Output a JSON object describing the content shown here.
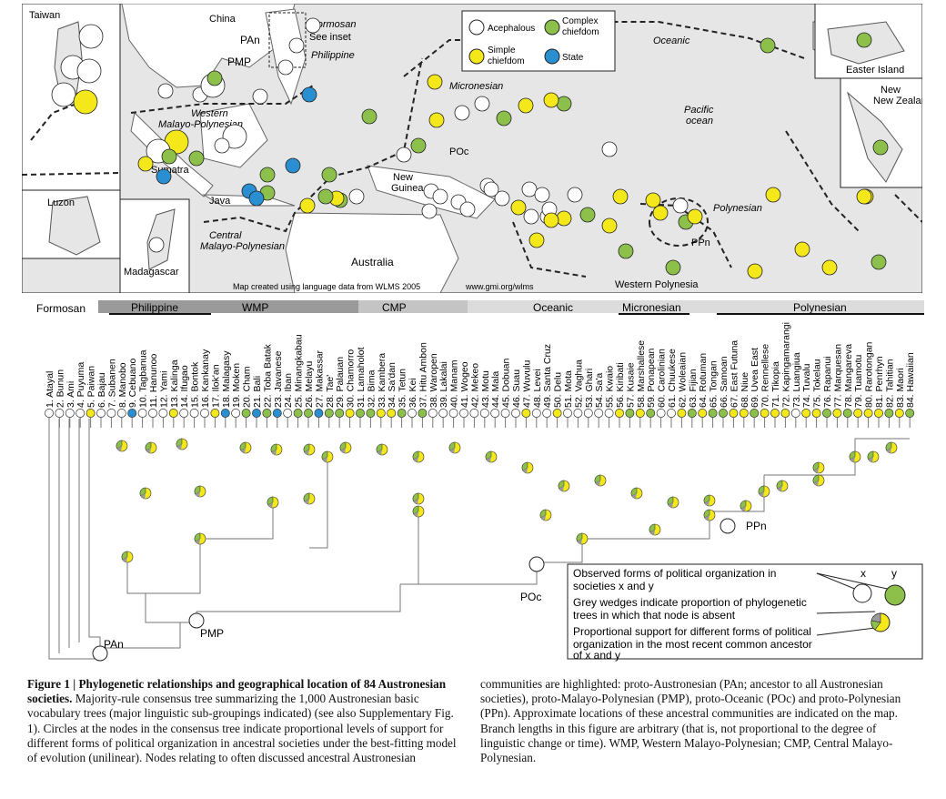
{
  "colors": {
    "acephalous": "#ffffff",
    "complex": "#8cc04b",
    "simple": "#f5e81a",
    "state": "#2a8fd0",
    "grey": "#9a9a9a",
    "land": "#ffffff",
    "sea": "#e6e6e6"
  },
  "map": {
    "legend": {
      "acephalous": "Acephalous",
      "complex": "Complex chiefdom",
      "simple": "Simple chiefdom",
      "state": "State"
    },
    "labels": {
      "taiwan": "Taiwan",
      "china": "China",
      "formosan": "Formosan",
      "see_inset": "See inset",
      "pan": "PAn",
      "pmp": "PMP",
      "philippine": "Philippine",
      "oceanic": "Oceanic",
      "micronesian": "Micronesian",
      "western_mp": "Western Malayo-Polynesian",
      "central_mp": "Central Malayo-Polynesian",
      "pacific": "Pacific ocean",
      "polynesian": "Polynesian",
      "sumatra": "Sumatra",
      "java": "Java",
      "luzon": "Luzon",
      "madagascar": "Madagascar",
      "australia": "Australia",
      "new_guinea": "New Guinea",
      "poc": "POc",
      "ppn": "PPn",
      "western_polynesia": "Western Polynesia",
      "easter": "Easter Island",
      "new_zealand": "New Zealand",
      "credit": "Map created using language data from WLMS 2005",
      "url": "www.gmi.org/wlms"
    }
  },
  "groups": {
    "formosan": "Formosan",
    "philippine": "Philippine",
    "wmp": "WMP",
    "cmp": "CMP",
    "oceanic": "Oceanic",
    "micronesian": "Micronesian",
    "polynesian": "Polynesian"
  },
  "societies": [
    {
      "name": "1. Atayal",
      "state": "a"
    },
    {
      "name": "2. Bunun",
      "state": "a"
    },
    {
      "name": "3. Ami",
      "state": "a"
    },
    {
      "name": "4. Puyuma",
      "state": "a"
    },
    {
      "name": "5. Paiwan",
      "state": "s"
    },
    {
      "name": "6. Bajau",
      "state": "a"
    },
    {
      "name": "7. Subanen",
      "state": "a"
    },
    {
      "name": "8. Manobo",
      "state": "a"
    },
    {
      "name": "9. Cebuano",
      "state": "t"
    },
    {
      "name": "10. Tagbanua",
      "state": "a"
    },
    {
      "name": "11. Hanunoo",
      "state": "a"
    },
    {
      "name": "12. Yami",
      "state": "a"
    },
    {
      "name": "13. Kalinga",
      "state": "s"
    },
    {
      "name": "14. Ifugao",
      "state": "a"
    },
    {
      "name": "15. Bontok",
      "state": "a"
    },
    {
      "name": "16. Kankanay",
      "state": "a"
    },
    {
      "name": "17. Ilok'an",
      "state": "s"
    },
    {
      "name": "18. Malagasy",
      "state": "t"
    },
    {
      "name": "19. Moken",
      "state": "a"
    },
    {
      "name": "20. Cham",
      "state": "c"
    },
    {
      "name": "21. Bali",
      "state": "t"
    },
    {
      "name": "22. Toba Batak",
      "state": "c"
    },
    {
      "name": "23. Javanese",
      "state": "t"
    },
    {
      "name": "24. Iban",
      "state": "a"
    },
    {
      "name": "25. Minangkabau",
      "state": "c"
    },
    {
      "name": "26. Melayu",
      "state": "c"
    },
    {
      "name": "27. Makassar",
      "state": "t"
    },
    {
      "name": "28. Tae'",
      "state": "c"
    },
    {
      "name": "29. Palauan",
      "state": "c"
    },
    {
      "name": "30. Chamorro",
      "state": "s"
    },
    {
      "name": "31. Lamaholot",
      "state": "c"
    },
    {
      "name": "32. Bima",
      "state": "c"
    },
    {
      "name": "33. Kambera",
      "state": "s"
    },
    {
      "name": "34. Sa'dan",
      "state": "s"
    },
    {
      "name": "35. Tetun",
      "state": "c"
    },
    {
      "name": "36. Kei",
      "state": "a"
    },
    {
      "name": "37. Hitu Ambon",
      "state": "c"
    },
    {
      "name": "38. Waropen",
      "state": "a"
    },
    {
      "name": "39. Lakalai",
      "state": "a"
    },
    {
      "name": "40. Manam",
      "state": "a"
    },
    {
      "name": "41. Wogeo",
      "state": "a"
    },
    {
      "name": "42. Mekeo",
      "state": "a"
    },
    {
      "name": "43. Motu",
      "state": "a"
    },
    {
      "name": "44. Mala",
      "state": "a"
    },
    {
      "name": "45. Dobuan",
      "state": "a"
    },
    {
      "name": "46. Suau",
      "state": "a"
    },
    {
      "name": "47. Wuvulu",
      "state": "s"
    },
    {
      "name": "48. Levei",
      "state": "a"
    },
    {
      "name": "49. Santa Cruz",
      "state": "a"
    },
    {
      "name": "50. Delu",
      "state": "s"
    },
    {
      "name": "51. Mota",
      "state": "a"
    },
    {
      "name": "52. Vaghua",
      "state": "a"
    },
    {
      "name": "53. Ghari",
      "state": "a"
    },
    {
      "name": "54. Sa'a",
      "state": "a"
    },
    {
      "name": "55. Kwaio",
      "state": "a"
    },
    {
      "name": "56. Kiribati",
      "state": "s"
    },
    {
      "name": "57. Kusaie",
      "state": "c"
    },
    {
      "name": "58. Marshallese",
      "state": "s"
    },
    {
      "name": "59. Ponapean",
      "state": "c"
    },
    {
      "name": "60. Carolinian",
      "state": "a"
    },
    {
      "name": "61. Chuukese",
      "state": "a"
    },
    {
      "name": "62. Woleaian",
      "state": "s"
    },
    {
      "name": "63. Fijian",
      "state": "c"
    },
    {
      "name": "64. Rotuman",
      "state": "s"
    },
    {
      "name": "65. Tongan",
      "state": "c"
    },
    {
      "name": "66. Samoan",
      "state": "c"
    },
    {
      "name": "67. East Futuna",
      "state": "s"
    },
    {
      "name": "68. Niue",
      "state": "s"
    },
    {
      "name": "69. Uvea East",
      "state": "c"
    },
    {
      "name": "70. Rennellese",
      "state": "s"
    },
    {
      "name": "71. Tikopia",
      "state": "s"
    },
    {
      "name": "72. Kapingamarangi",
      "state": "s"
    },
    {
      "name": "73. Luangiua",
      "state": "a"
    },
    {
      "name": "74. Tuvalu",
      "state": "s"
    },
    {
      "name": "75. Tokelau",
      "state": "s"
    },
    {
      "name": "76. Rapanui",
      "state": "c"
    },
    {
      "name": "77. Marquesan",
      "state": "s"
    },
    {
      "name": "78. Mangareva",
      "state": "c"
    },
    {
      "name": "79. Tuamotu",
      "state": "s"
    },
    {
      "name": "80. Rarotongan",
      "state": "s"
    },
    {
      "name": "81. Penrhyn",
      "state": "s"
    },
    {
      "name": "82. Tahitian",
      "state": "c"
    },
    {
      "name": "83. Maori",
      "state": "s"
    },
    {
      "name": "84. Hawaiian",
      "state": "c"
    }
  ],
  "tree": {
    "nodes": {
      "pan": "PAn",
      "pmp": "PMP",
      "poc": "POc",
      "ppn": "PPn"
    }
  },
  "legend_box": {
    "line1": "Observed forms of political organization in",
    "line2": "societies x and y",
    "line3": "Grey wedges indicate proportion of phylogenetic",
    "line4": "trees in which that node is absent",
    "line5": "Proportional support for different forms of political",
    "line6": "organization in the most recent common ancestor",
    "line7": "of x and y",
    "x": "x",
    "y": "y"
  },
  "caption": {
    "title": "Figure 1 | Phylogenetic relationships and geographical location of 84 Austronesian societies.",
    "left_body": " Majority-rule consensus tree summarizing the 1,000 Austronesian basic vocabulary trees (major linguistic sub-groupings indicated) (see also Supplementary Fig. 1). Circles at the nodes in the consensus tree indicate proportional levels of support for different forms of political organization in ancestral societies under the best-fitting model of evolution (unilinear). Nodes relating to often discussed ancestral Austronesian",
    "right_body": "communities are highlighted: proto-Austronesian (PAn; ancestor to all Austronesian societies), proto-Malayo-Polynesian (PMP), proto-Oceanic (POc) and proto-Polynesian (PPn). Approximate locations of these ancestral communities are indicated on the map. Branch lengths in this figure are arbitrary (that is, not proportional to the degree of linguistic change or time). WMP, Western Malayo-Polynesian; CMP, Central Malayo-Polynesian."
  }
}
